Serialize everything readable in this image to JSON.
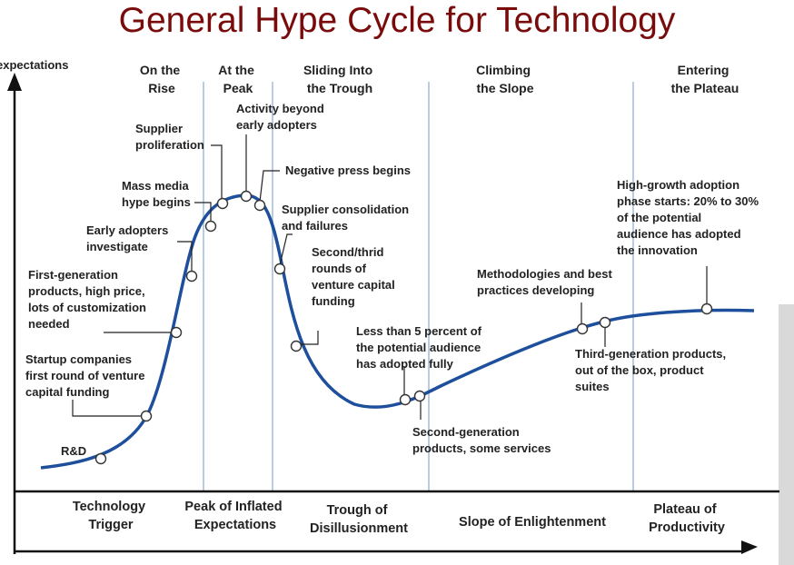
{
  "title": "General Hype Cycle for Technology",
  "y_axis_label": "expectations",
  "phases": [
    {
      "lines": [
        "On the",
        "Rise"
      ]
    },
    {
      "lines": [
        "At the",
        "Peak"
      ]
    },
    {
      "lines": [
        "Sliding Into",
        "the Trough"
      ]
    },
    {
      "lines": [
        "Climbing",
        "the Slope"
      ]
    },
    {
      "lines": [
        "Entering",
        "the Plateau"
      ]
    }
  ],
  "stages": [
    {
      "lines": [
        "Technology",
        "Trigger"
      ]
    },
    {
      "lines": [
        "Peak of Inflated",
        "Expectations"
      ]
    },
    {
      "lines": [
        "Trough of",
        "Disillusionment"
      ]
    },
    {
      "lines": [
        "Slope of Enlightenment"
      ]
    },
    {
      "lines": [
        "Plateau of",
        "Productivity"
      ]
    }
  ],
  "annotations": [
    {
      "lines": [
        "R&D"
      ]
    },
    {
      "lines": [
        "Startup companies",
        "first round of venture",
        "capital funding"
      ]
    },
    {
      "lines": [
        "First-generation",
        "products, high price,",
        "lots of customization",
        "needed"
      ]
    },
    {
      "lines": [
        "Early adopters",
        "investigate"
      ]
    },
    {
      "lines": [
        "Mass media",
        "hype begins"
      ]
    },
    {
      "lines": [
        "Supplier",
        "proliferation"
      ]
    },
    {
      "lines": [
        "Activity beyond",
        "early adopters"
      ]
    },
    {
      "lines": [
        "Negative press begins"
      ]
    },
    {
      "lines": [
        "Supplier consolidation",
        "and failures"
      ]
    },
    {
      "lines": [
        "Second/thrid",
        "rounds of",
        "venture capital",
        "funding"
      ]
    },
    {
      "lines": [
        "Less than 5 percent of",
        "the potential audience",
        "has adopted fully"
      ]
    },
    {
      "lines": [
        "Second-generation",
        "products, some services"
      ]
    },
    {
      "lines": [
        "Methodologies and best",
        "practices developing"
      ]
    },
    {
      "lines": [
        "Third-generation products,",
        "out of the box, product",
        "suites"
      ]
    },
    {
      "lines": [
        "High-growth adoption",
        "phase starts: 20% to 30%",
        "of the potential",
        "audience has adopted",
        "the innovation"
      ]
    }
  ],
  "colors": {
    "title": "#7a0b0b",
    "curve": "#1e4f9c",
    "divider": "#b8cde4",
    "axis": "#111111",
    "text": "#222222"
  }
}
